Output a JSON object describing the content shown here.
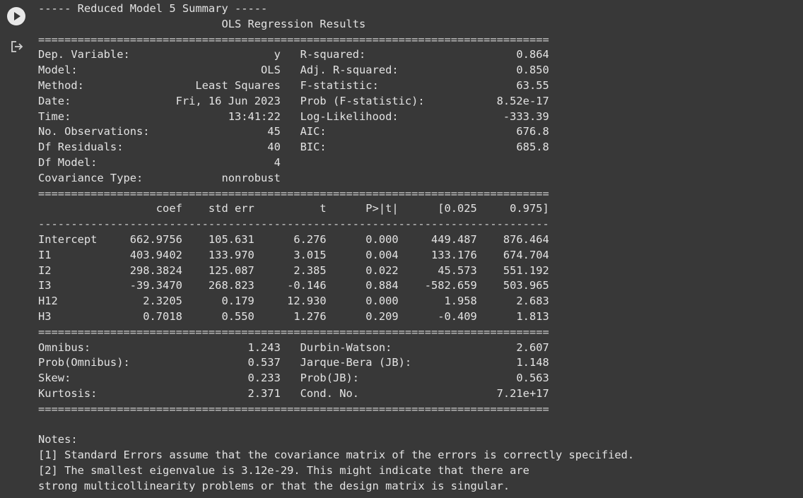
{
  "gutter": {
    "run_icon": "play-circle-icon",
    "output_icon": "output-redirect-icon"
  },
  "output": {
    "header": "----- Reduced Model 5 Summary -----",
    "results_title": "OLS Regression Results",
    "info_left": [
      {
        "label": "Dep. Variable:",
        "value": "y"
      },
      {
        "label": "Model:",
        "value": "OLS"
      },
      {
        "label": "Method:",
        "value": "Least Squares"
      },
      {
        "label": "Date:",
        "value": "Fri, 16 Jun 2023"
      },
      {
        "label": "Time:",
        "value": "13:41:22"
      },
      {
        "label": "No. Observations:",
        "value": "45"
      },
      {
        "label": "Df Residuals:",
        "value": "40"
      },
      {
        "label": "Df Model:",
        "value": "4"
      },
      {
        "label": "Covariance Type:",
        "value": "nonrobust"
      }
    ],
    "info_right": [
      {
        "label": "R-squared:",
        "value": "0.864"
      },
      {
        "label": "Adj. R-squared:",
        "value": "0.850"
      },
      {
        "label": "F-statistic:",
        "value": "63.55"
      },
      {
        "label": "Prob (F-statistic):",
        "value": "8.52e-17"
      },
      {
        "label": "Log-Likelihood:",
        "value": "-333.39"
      },
      {
        "label": "AIC:",
        "value": "676.8"
      },
      {
        "label": "BIC:",
        "value": "685.8"
      }
    ],
    "coef_headers": [
      "coef",
      "std err",
      "t",
      "P>|t|",
      "[0.025",
      "0.975]"
    ],
    "coef_rows": [
      {
        "name": "Intercept",
        "values": [
          "662.9756",
          "105.631",
          "6.276",
          "0.000",
          "449.487",
          "876.464"
        ]
      },
      {
        "name": "I1",
        "values": [
          "403.9402",
          "133.970",
          "3.015",
          "0.004",
          "133.176",
          "674.704"
        ]
      },
      {
        "name": "I2",
        "values": [
          "298.3824",
          "125.087",
          "2.385",
          "0.022",
          "45.573",
          "551.192"
        ]
      },
      {
        "name": "I3",
        "values": [
          "-39.3470",
          "268.823",
          "-0.146",
          "0.884",
          "-582.659",
          "503.965"
        ]
      },
      {
        "name": "H12",
        "values": [
          "2.3205",
          "0.179",
          "12.930",
          "0.000",
          "1.958",
          "2.683"
        ]
      },
      {
        "name": "H3",
        "values": [
          "0.7018",
          "0.550",
          "1.276",
          "0.209",
          "-0.409",
          "1.813"
        ]
      }
    ],
    "diag_left": [
      {
        "label": "Omnibus:",
        "value": "1.243"
      },
      {
        "label": "Prob(Omnibus):",
        "value": "0.537"
      },
      {
        "label": "Skew:",
        "value": "0.233"
      },
      {
        "label": "Kurtosis:",
        "value": "2.371"
      }
    ],
    "diag_right": [
      {
        "label": "Durbin-Watson:",
        "value": "2.607"
      },
      {
        "label": "Jarque-Bera (JB):",
        "value": "1.148"
      },
      {
        "label": "Prob(JB):",
        "value": "0.563"
      },
      {
        "label": "Cond. No.",
        "value": "7.21e+17"
      }
    ],
    "notes_title": "Notes:",
    "notes": [
      "[1] Standard Errors assume that the covariance matrix of the errors is correctly specified.",
      "[2] The smallest eigenvalue is 3.12e-29. This might indicate that there are",
      "strong multicollinearity problems or that the design matrix is singular."
    ]
  }
}
